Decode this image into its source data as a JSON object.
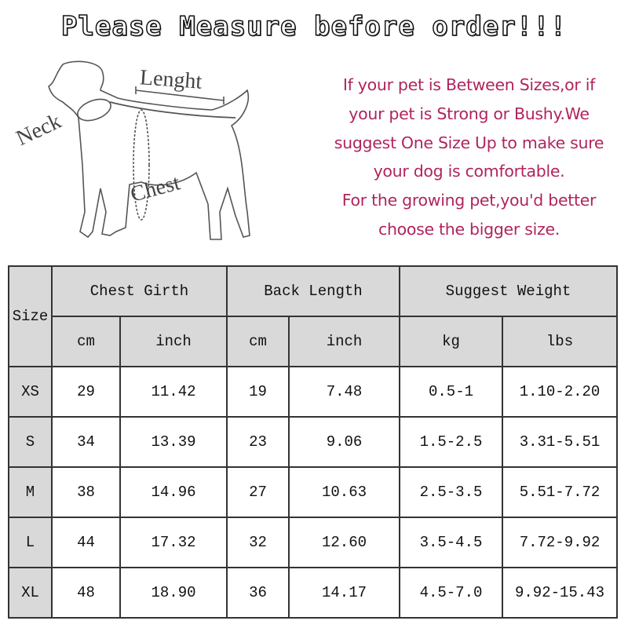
{
  "title": "Please Measure before order!!!",
  "diagram": {
    "neck": "Neck",
    "length": "Lenght",
    "chest": "Chest"
  },
  "note_lines": [
    "If your pet is Between Sizes,or if",
    "your pet is Strong or Bushy.We",
    "suggest One Size Up to make sure",
    "your dog is comfortable.",
    "For the growing pet,you'd better",
    "choose the bigger size."
  ],
  "colors": {
    "note": "#b0245e",
    "header_bg": "#d9d9d9"
  },
  "table": {
    "size_header": "Size",
    "groups": [
      "Chest Girth",
      "Back Length",
      "Suggest Weight"
    ],
    "units": [
      "cm",
      "inch",
      "cm",
      "inch",
      "kg",
      "lbs"
    ],
    "rows": [
      [
        "XS",
        "29",
        "11.42",
        "19",
        "7.48",
        "0.5-1",
        "1.10-2.20"
      ],
      [
        "S",
        "34",
        "13.39",
        "23",
        "9.06",
        "1.5-2.5",
        "3.31-5.51"
      ],
      [
        "M",
        "38",
        "14.96",
        "27",
        "10.63",
        "2.5-3.5",
        "5.51-7.72"
      ],
      [
        "L",
        "44",
        "17.32",
        "32",
        "12.60",
        "3.5-4.5",
        "7.72-9.92"
      ],
      [
        "XL",
        "48",
        "18.90",
        "36",
        "14.17",
        "4.5-7.0",
        "9.92-15.43"
      ]
    ]
  }
}
